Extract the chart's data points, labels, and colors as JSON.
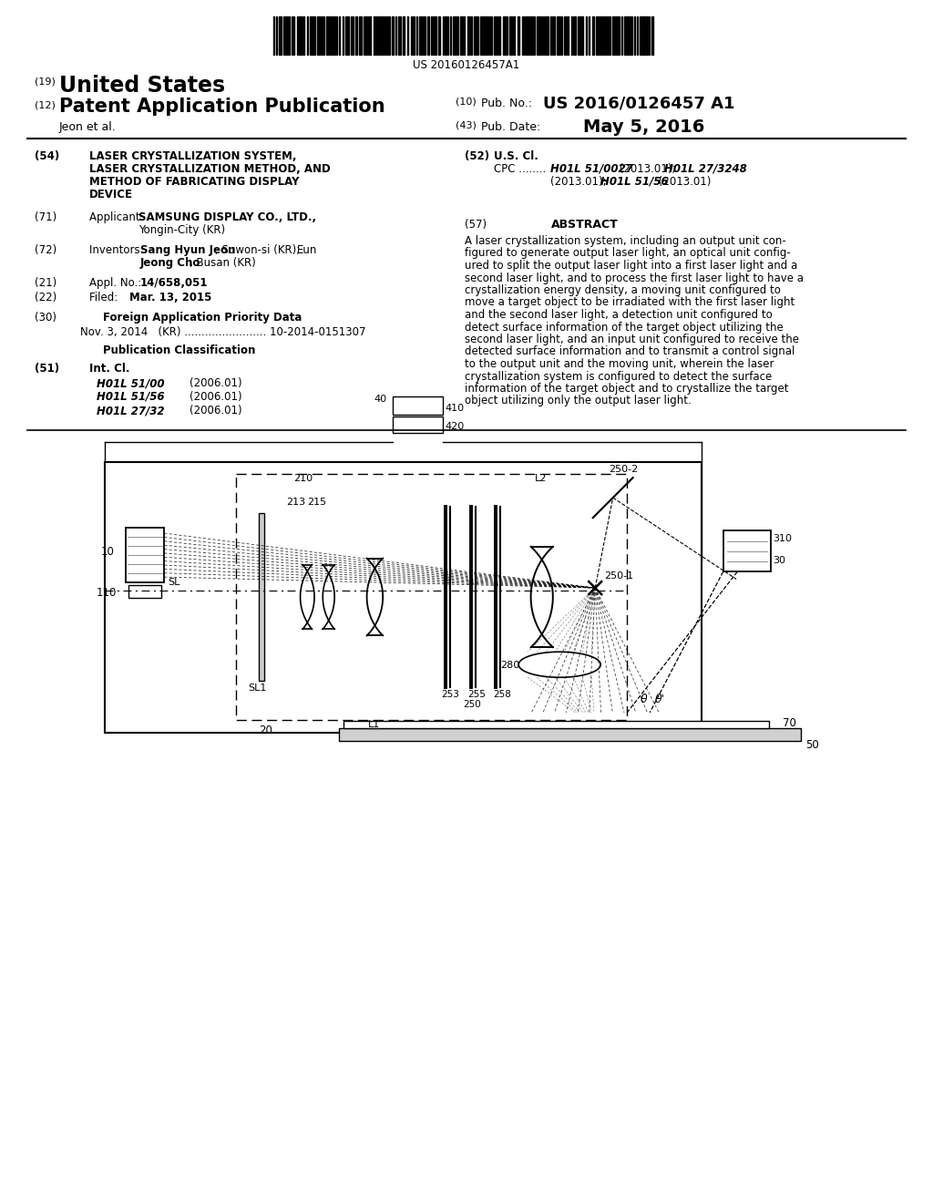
{
  "bg_color": "#ffffff",
  "barcode_text": "US 20160126457A1",
  "patent_number": "US 2016/0126457 A1",
  "pub_date": "May 5, 2016",
  "fig_width": 10.24,
  "fig_height": 13.2,
  "fig_dpi": 100,
  "abstract_lines": [
    "A laser crystallization system, including an output unit con-",
    "figured to generate output laser light, an optical unit config-",
    "ured to split the output laser light into a first laser light and a",
    "second laser light, and to process the first laser light to have a",
    "crystallization energy density, a moving unit configured to",
    "move a target object to be irradiated with the first laser light",
    "and the second laser light, a detection unit configured to",
    "detect surface information of the target object utilizing the",
    "second laser light, and an input unit configured to receive the",
    "detected surface information and to transmit a control signal",
    "to the output unit and the moving unit, wherein the laser",
    "crystallization system is configured to detect the surface",
    "information of the target object and to crystallize the target",
    "object utilizing only the output laser light."
  ],
  "int_cl_classes": [
    [
      "H01L 51/00",
      "(2006.01)"
    ],
    [
      "H01L 51/56",
      "(2006.01)"
    ],
    [
      "H01L 27/32",
      "(2006.01)"
    ]
  ]
}
